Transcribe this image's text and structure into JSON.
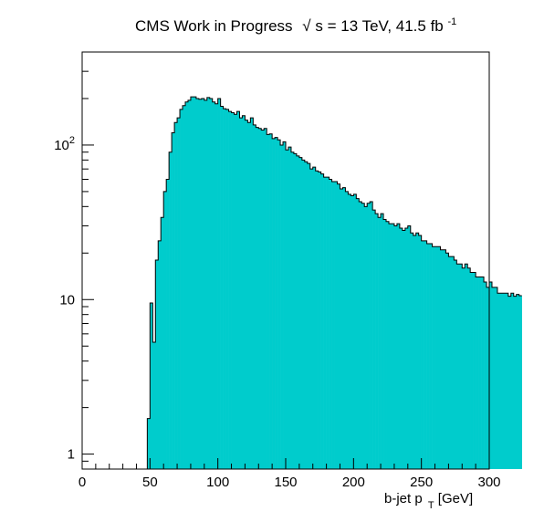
{
  "chart_data": {
    "type": "histogram",
    "title": {
      "experiment": "CMS Work in Progress",
      "sqrt_symbol": "√",
      "sqrt_arg": "s",
      "energy": " = 13 TeV, 41.5 fb",
      "lumi_exponent": "-1"
    },
    "xlabel": {
      "main": "b-jet p",
      "subscript": "T",
      "unit": " [GeV]"
    },
    "xlim": [
      0,
      300
    ],
    "ylim": [
      0.8,
      400
    ],
    "yscale": "log",
    "x_ticks": [
      {
        "value": 0,
        "label": "0"
      },
      {
        "value": 50,
        "label": "50"
      },
      {
        "value": 100,
        "label": "100"
      },
      {
        "value": 150,
        "label": "150"
      },
      {
        "value": 200,
        "label": "200"
      },
      {
        "value": 250,
        "label": "250"
      },
      {
        "value": 300,
        "label": "300"
      }
    ],
    "y_ticks": [
      {
        "value": 1,
        "label": "1"
      },
      {
        "value": 10,
        "label": "10"
      },
      {
        "value": 100,
        "label_base": "10",
        "label_exp": "2"
      }
    ],
    "fill_color": "#00cccc",
    "line_color": "#000000",
    "bin_width": 2,
    "bin_start": 0,
    "values": [
      0,
      0,
      0,
      0,
      0,
      0,
      0,
      0,
      0,
      0,
      0,
      0,
      0,
      0,
      0,
      0,
      0,
      0,
      0,
      0,
      0,
      0,
      0,
      0,
      1.7,
      9.5,
      5.3,
      18,
      24,
      34,
      50,
      60,
      90,
      120,
      140,
      150,
      170,
      180,
      190,
      195,
      205,
      205,
      200,
      198,
      200,
      195,
      203,
      200,
      190,
      185,
      200,
      178,
      172,
      170,
      165,
      162,
      158,
      165,
      150,
      155,
      145,
      140,
      150,
      135,
      130,
      128,
      125,
      128,
      117,
      118,
      110,
      112,
      108,
      100,
      105,
      93,
      97,
      90,
      88,
      85,
      83,
      80,
      78,
      76,
      70,
      72,
      68,
      67,
      65,
      62,
      62,
      60,
      58,
      58,
      56,
      52,
      53,
      50,
      48,
      47,
      48,
      45,
      43,
      42,
      40,
      42,
      43,
      38,
      36,
      34,
      36,
      33,
      32,
      31,
      31,
      30,
      31,
      29,
      28,
      29,
      30,
      27,
      26,
      27,
      26,
      24,
      24,
      23,
      23,
      22,
      22,
      22,
      21,
      21,
      20,
      19,
      19,
      18,
      17,
      17,
      16,
      17,
      16,
      15,
      15,
      14,
      14,
      14,
      13,
      12,
      13,
      12,
      12,
      11,
      11,
      11,
      11,
      10.5,
      11,
      10.5,
      10.8,
      10.6
    ]
  }
}
